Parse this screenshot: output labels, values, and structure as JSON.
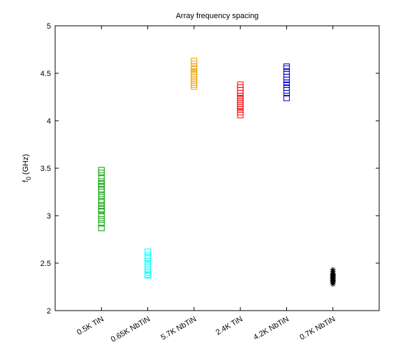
{
  "chart_data": {
    "type": "scatter",
    "title": "Array frequency spacing",
    "ylabel": [
      "f",
      "0",
      " (GHz)"
    ],
    "categories": [
      "0.5K TiN",
      "0.65K NbTiN",
      "5.7K NbTiN",
      "2.4K TiN",
      "4.2K NbTiN",
      "0.7K NbTiN"
    ],
    "xlim": [
      0,
      7
    ],
    "ylim": [
      2,
      5
    ],
    "yticks": [
      2,
      2.5,
      3,
      3.5,
      4,
      4.5,
      5
    ],
    "series": [
      {
        "color": "#00a000",
        "marker": "square",
        "values": [
          3.48,
          3.45,
          3.4,
          3.36,
          3.33,
          3.31,
          3.28,
          3.25,
          3.21,
          3.17,
          3.14,
          3.1,
          3.07,
          3.05,
          3.0,
          2.96,
          2.92,
          2.87
        ]
      },
      {
        "color": "#00ffff",
        "marker": "square",
        "values": [
          2.62,
          2.58,
          2.55,
          2.52,
          2.5,
          2.48,
          2.46,
          2.44,
          2.42,
          2.4,
          2.38,
          2.37
        ]
      },
      {
        "color": "#f0a000",
        "marker": "square",
        "values": [
          4.63,
          4.6,
          4.57,
          4.55,
          4.52,
          4.5,
          4.48,
          4.46,
          4.44,
          4.42,
          4.4,
          4.38,
          4.36
        ]
      },
      {
        "color": "#ff0000",
        "marker": "square",
        "values": [
          4.38,
          4.35,
          4.32,
          4.29,
          4.26,
          4.24,
          4.22,
          4.2,
          4.18,
          4.16,
          4.14,
          4.12,
          4.09,
          4.06
        ]
      },
      {
        "color": "#0000cc",
        "marker": "square",
        "values": [
          4.57,
          4.55,
          4.52,
          4.49,
          4.46,
          4.43,
          4.4,
          4.38,
          4.35,
          4.32,
          4.29,
          4.24
        ]
      },
      {
        "color": "#000000",
        "marker": "star",
        "values": [
          2.43,
          2.41,
          2.39,
          2.38,
          2.37,
          2.36,
          2.35,
          2.34,
          2.33,
          2.32,
          2.31,
          2.3,
          2.28
        ]
      }
    ]
  }
}
